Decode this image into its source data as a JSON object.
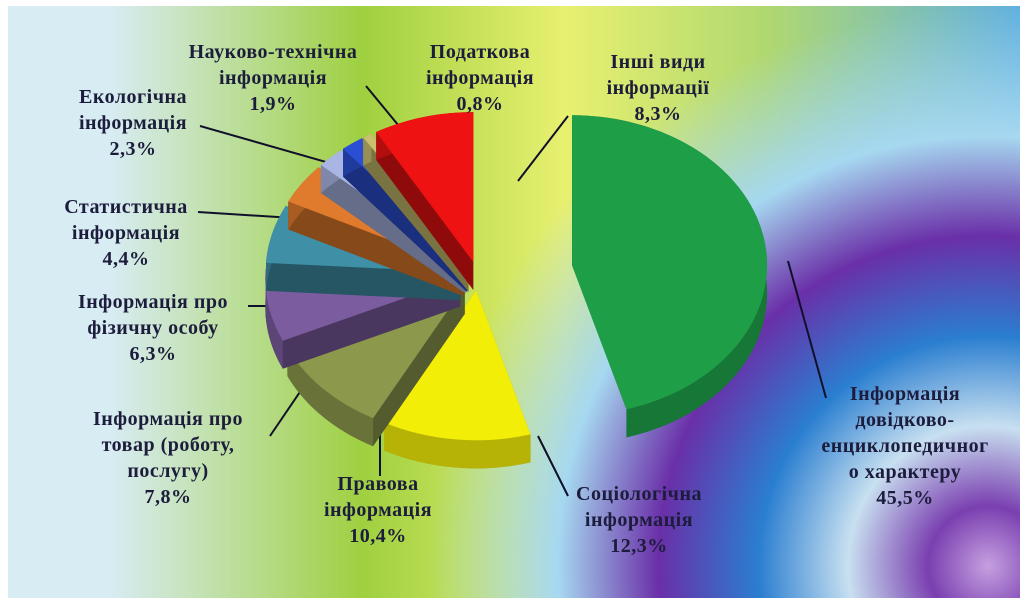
{
  "chart_data": {
    "type": "pie",
    "categories": [
      "Інформація\nдовідково-\nенциклопедичног\nо характеру",
      "Соціологічна\nінформація",
      "Правова\nінформація",
      "Інформація про\nтовар (роботу,\nпослугу)",
      "Інформація про\nфізичну особу",
      "Статистична\nінформація",
      "Екологічна\nінформація",
      "Науково-технічна\nінформація",
      "Податкова\nінформація",
      "Інші види\nінформації"
    ],
    "values": [
      45.5,
      12.3,
      10.4,
      7.8,
      6.3,
      4.4,
      2.3,
      1.9,
      0.8,
      8.3
    ],
    "value_labels": [
      "45,5%",
      "12,3%",
      "10,4%",
      "7,8%",
      "6,3%",
      "4,4%",
      "2,3%",
      "1,9%",
      "0,8%",
      "8,3%"
    ],
    "colors": [
      "#1f9e48",
      "#f2ee08",
      "#8c984c",
      "#7b5c9e",
      "#3f8fa6",
      "#e07a2c",
      "#a9b5e2",
      "#2b4fd2",
      "#c9bf6e",
      "#ee1212"
    ]
  }
}
